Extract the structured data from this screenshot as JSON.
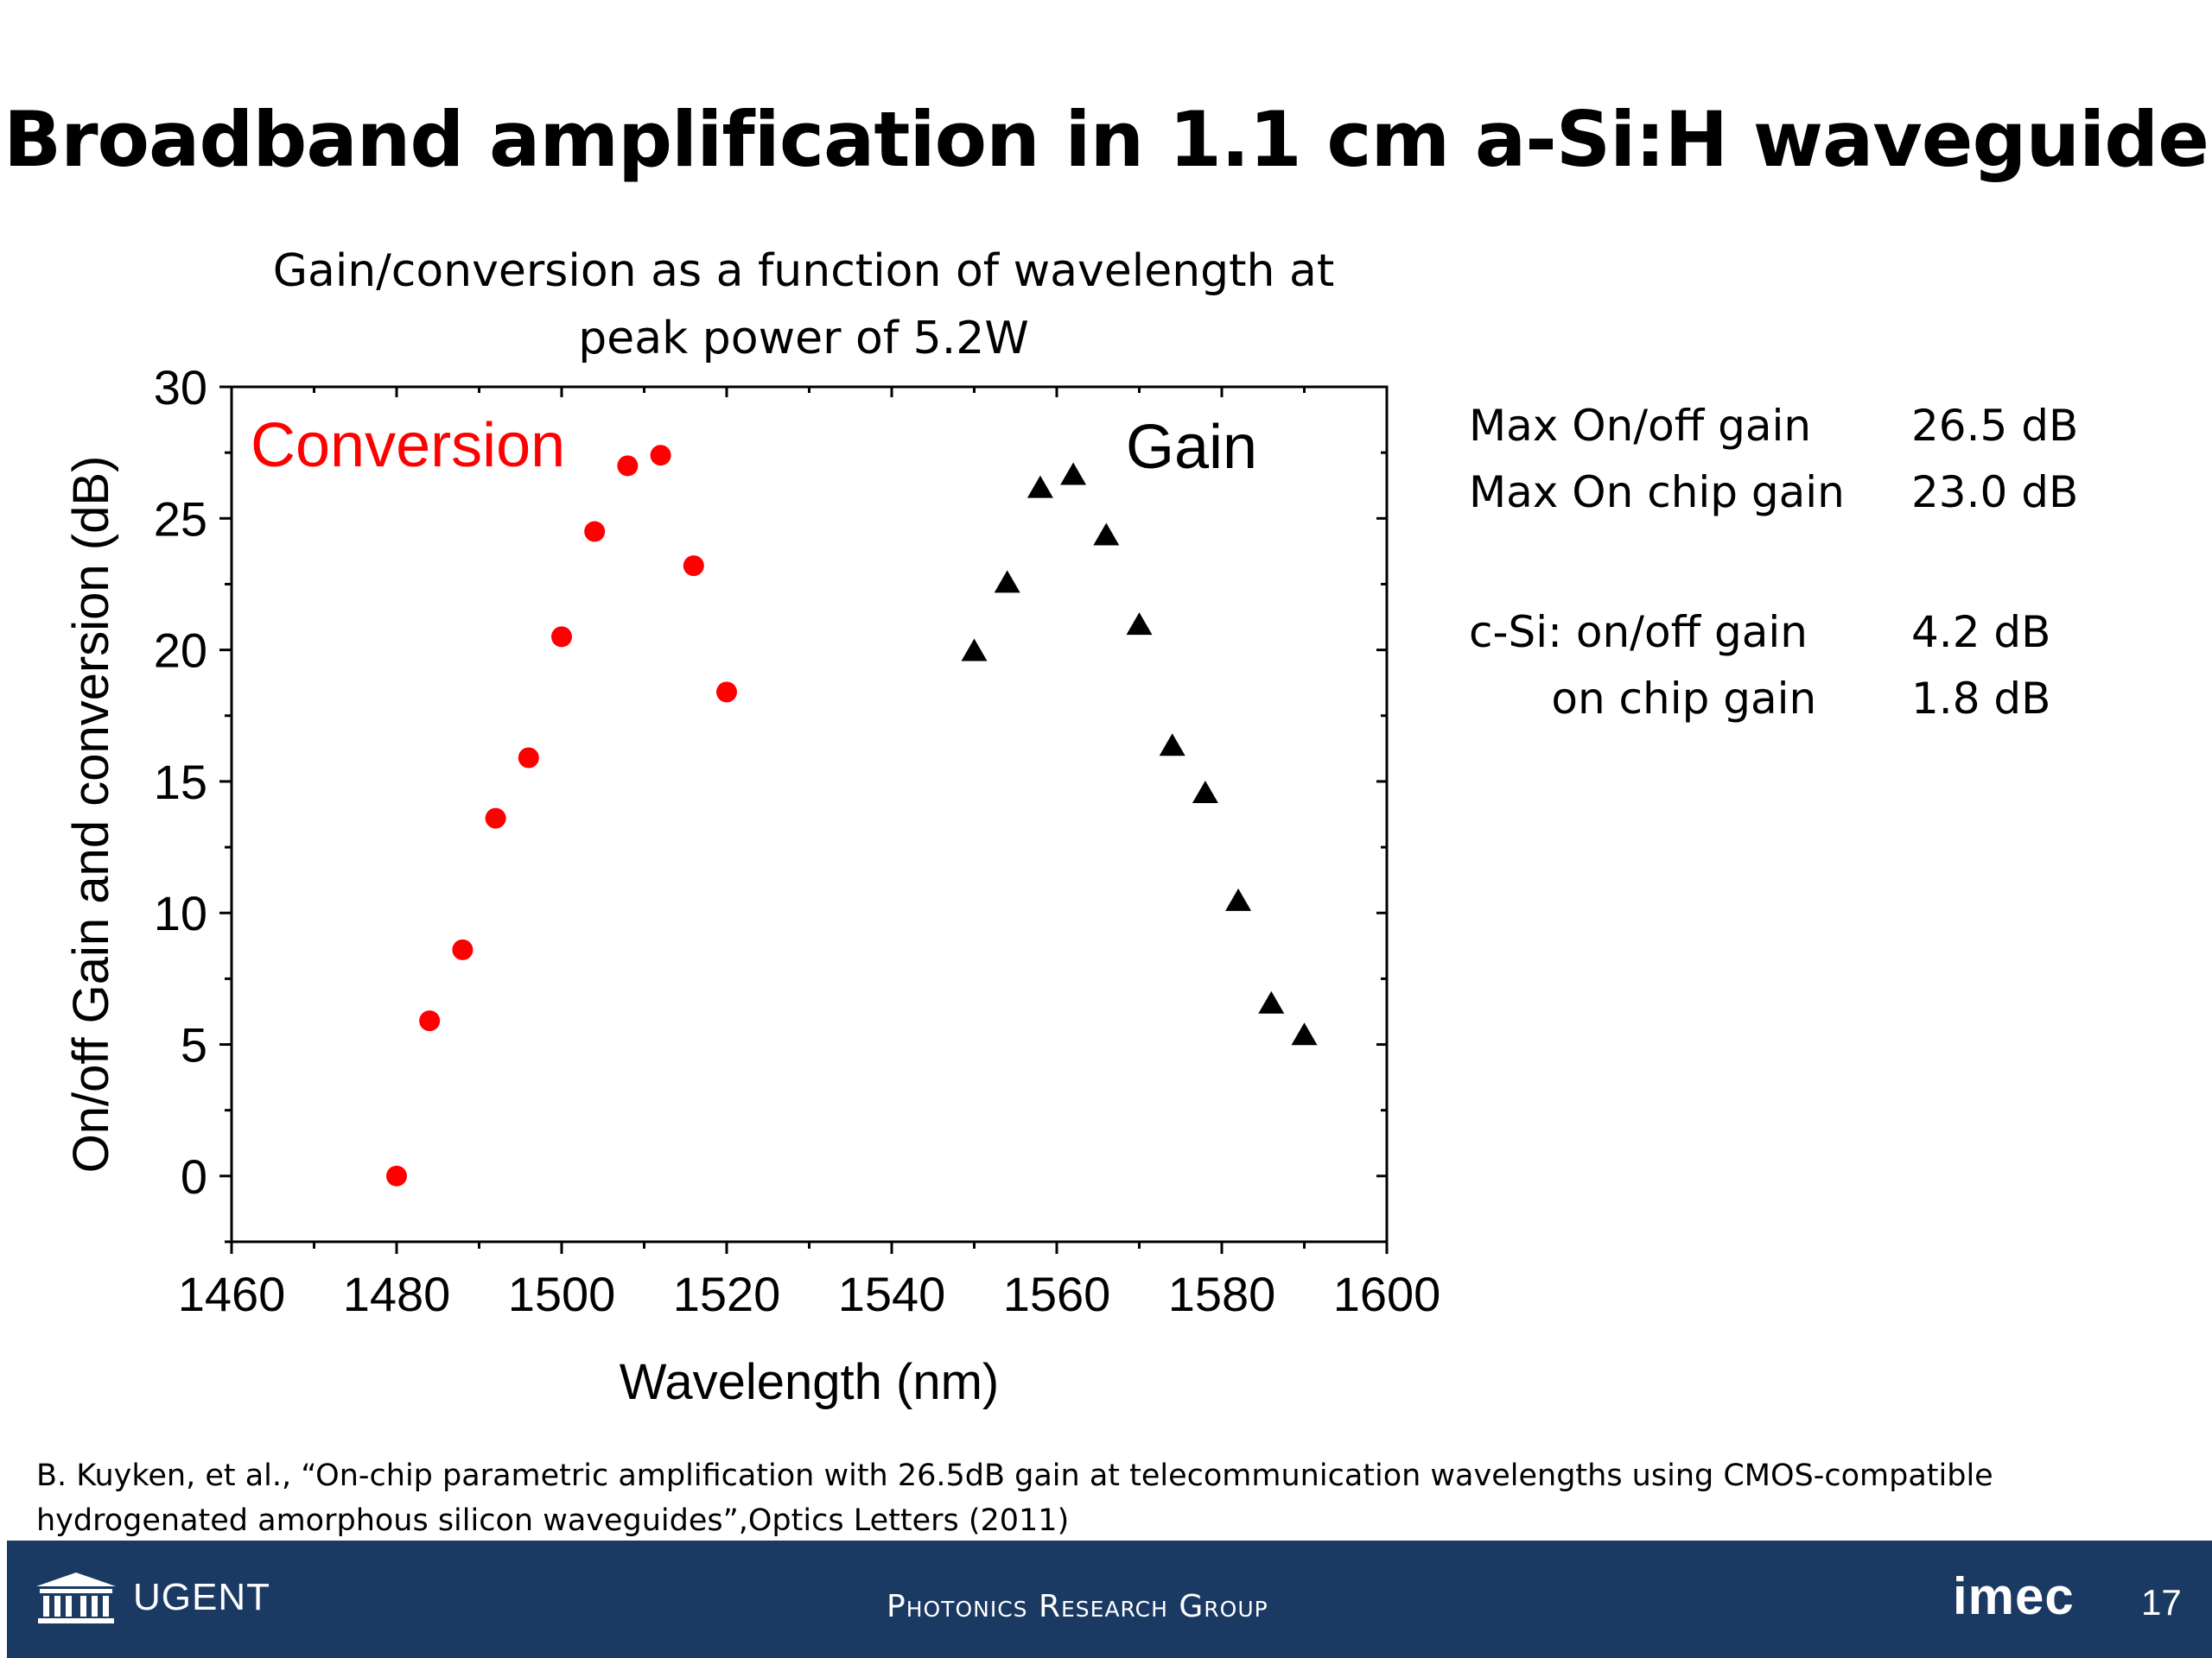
{
  "slide": {
    "title": "Broadband amplification in 1.1 cm a-Si:H waveguide",
    "chart_title_line1": "Gain/conversion as a function of wavelength at",
    "chart_title_line2": "peak power of 5.2W"
  },
  "stats": {
    "rows": [
      {
        "label": "Max On/off gain",
        "value": "26.5 dB"
      },
      {
        "label": "Max On chip gain",
        "value": "23.0 dB"
      },
      {
        "label": "c-Si: on/off gain",
        "value": "4.2 dB"
      },
      {
        "label": "      on chip gain",
        "value": "1.8 dB"
      }
    ]
  },
  "reference": {
    "line1": "B. Kuyken, et al., “On-chip parametric amplification with 26.5dB gain at telecommunication wavelengths using CMOS-compatible",
    "line2": "hydrogenated amorphous silicon waveguides”,Optics Letters (2011)"
  },
  "footer": {
    "university": "UGENT",
    "group": "Photonics Research Group",
    "partner": "imec",
    "page_number": "17",
    "bar_color": "#1b3a63"
  },
  "chart_data": {
    "type": "scatter",
    "title": "Gain/conversion as a function of wavelength at peak power of 5.2W",
    "xlabel": "Wavelength (nm)",
    "ylabel": "On/off Gain and conversion (dB)",
    "xlim": [
      1460,
      1600
    ],
    "ylim": [
      -2.5,
      30
    ],
    "xticks": [
      1460,
      1480,
      1500,
      1520,
      1540,
      1560,
      1580,
      1600
    ],
    "yticks": [
      0,
      5,
      10,
      15,
      20,
      25,
      30
    ],
    "grid": false,
    "series": [
      {
        "name": "Conversion",
        "marker": "circle",
        "color": "#ff0000",
        "x": [
          1480,
          1484,
          1488,
          1492,
          1496,
          1500,
          1504,
          1508,
          1512,
          1516,
          1520
        ],
        "y": [
          0,
          5.9,
          8.6,
          13.6,
          15.9,
          20.5,
          24.5,
          27.0,
          27.4,
          23.2,
          18.4
        ]
      },
      {
        "name": "Gain",
        "marker": "triangle",
        "color": "#000000",
        "x": [
          1550,
          1554,
          1558,
          1562,
          1566,
          1570,
          1574,
          1578,
          1582,
          1586,
          1590
        ],
        "y": [
          19.9,
          22.5,
          26.1,
          26.6,
          24.3,
          20.9,
          16.3,
          14.5,
          10.4,
          6.5,
          5.3
        ]
      }
    ]
  }
}
